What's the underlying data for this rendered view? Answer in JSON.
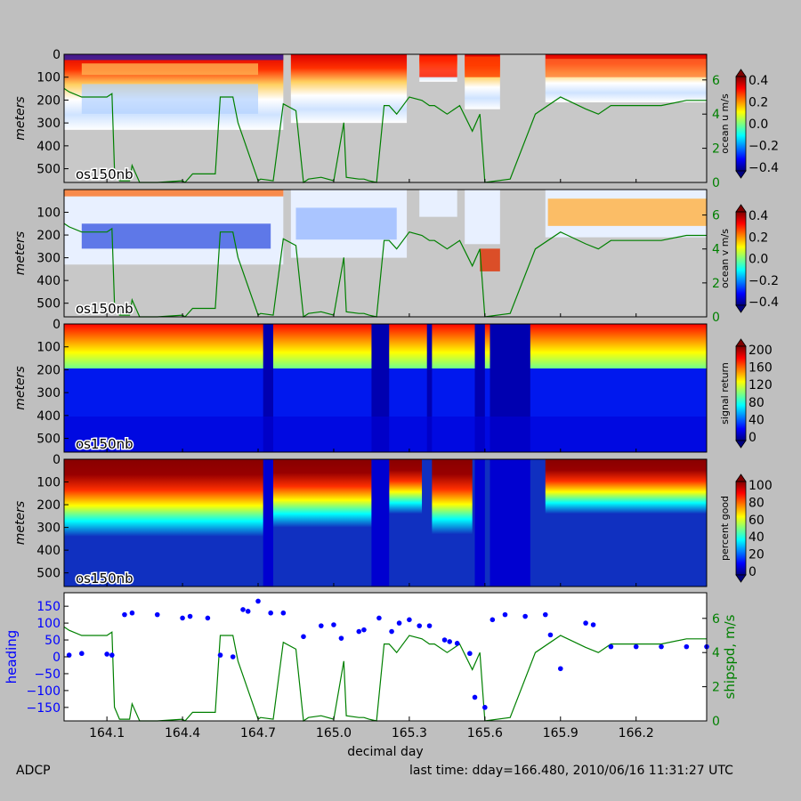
{
  "chart_data": [
    {
      "type": "heatmap",
      "instrument_label": "os150nb",
      "ylabel": "meters",
      "yticks": [
        0,
        100,
        200,
        300,
        400,
        500
      ],
      "colorbar_label": "ocean u m/s",
      "colorbar_ticks": [
        "0.4",
        "0.2",
        "0.0",
        "−0.2",
        "−0.4"
      ],
      "colorbar_range": [
        -0.4,
        0.4
      ],
      "colormap": "jet",
      "right_axis_ticks": [
        0,
        2,
        4,
        6
      ],
      "right_axis_range": [
        0,
        7.5
      ],
      "right_axis_color": "#008000"
    },
    {
      "type": "heatmap",
      "instrument_label": "os150nb",
      "ylabel": "meters",
      "yticks": [
        100,
        200,
        300,
        400,
        500
      ],
      "colorbar_label": "ocean v m/s",
      "colorbar_ticks": [
        "0.4",
        "0.2",
        "0.0",
        "−0.2",
        "−0.4"
      ],
      "colorbar_range": [
        -0.4,
        0.4
      ],
      "colormap": "jet",
      "right_axis_ticks": [
        0,
        2,
        4,
        6
      ],
      "right_axis_range": [
        0,
        7.5
      ],
      "right_axis_color": "#008000"
    },
    {
      "type": "heatmap",
      "instrument_label": "os150nb",
      "ylabel": "meters",
      "yticks": [
        0,
        100,
        200,
        300,
        400,
        500
      ],
      "colorbar_label": "signal return",
      "colorbar_ticks": [
        "200",
        "160",
        "120",
        "80",
        "40",
        "0"
      ],
      "colorbar_range": [
        0,
        200
      ],
      "colormap": "jet"
    },
    {
      "type": "heatmap",
      "instrument_label": "os150nb",
      "ylabel": "meters",
      "yticks": [
        0,
        100,
        200,
        300,
        400,
        500
      ],
      "colorbar_label": "percent good",
      "colorbar_ticks": [
        "100",
        "80",
        "60",
        "40",
        "20",
        "0"
      ],
      "colorbar_range": [
        0,
        100
      ],
      "colormap": "jet"
    },
    {
      "type": "scatter",
      "ylabel": "heading",
      "ylabel_color": "#0000ff",
      "yticks": [
        "150",
        "100",
        "50",
        "0",
        "−50",
        "−100",
        "−150"
      ],
      "ylim": [
        -190,
        190
      ],
      "right_ylabel": "shipspd, m/s",
      "right_ylabel_color": "#008000",
      "right_yticks": [
        0,
        2,
        4,
        6
      ],
      "right_ylim": [
        0,
        7.5
      ],
      "xlabel": "decimal day",
      "xticks": [
        "164.1",
        "164.4",
        "164.7",
        "165.0",
        "165.3",
        "165.6",
        "165.9",
        "166.2"
      ],
      "xlim": [
        163.93,
        166.48
      ],
      "series": [
        {
          "color": "#0000ff",
          "marker": "circle",
          "x": [
            163.95,
            164.0,
            164.1,
            164.12,
            164.17,
            164.2,
            164.3,
            164.4,
            164.43,
            164.5,
            164.55,
            164.6,
            164.64,
            164.66,
            164.7,
            164.75,
            164.8,
            164.88,
            164.95,
            165.0,
            165.03,
            165.1,
            165.12,
            165.18,
            165.23,
            165.26,
            165.3,
            165.34,
            165.38,
            165.44,
            165.46,
            165.49,
            165.54,
            165.56,
            165.6,
            165.63,
            165.68,
            165.76,
            165.84,
            165.86,
            165.9,
            166.0,
            166.03,
            166.1,
            166.2,
            166.3,
            166.4,
            166.48
          ],
          "y": [
            5,
            10,
            8,
            5,
            125,
            130,
            125,
            115,
            120,
            115,
            5,
            0,
            140,
            135,
            165,
            130,
            130,
            60,
            92,
            95,
            55,
            75,
            80,
            115,
            75,
            100,
            110,
            92,
            92,
            50,
            45,
            40,
            10,
            -120,
            -150,
            110,
            125,
            120,
            125,
            65,
            -35,
            100,
            95,
            30,
            30,
            30,
            30,
            30
          ]
        },
        {
          "name": "shipspd",
          "color": "#008000",
          "axis": "right",
          "x": [
            163.93,
            163.95,
            164.0,
            164.1,
            164.12,
            164.13,
            164.15,
            164.19,
            164.2,
            164.23,
            164.3,
            164.4,
            164.41,
            164.44,
            164.47,
            164.5,
            164.51,
            164.53,
            164.55,
            164.6,
            164.62,
            164.7,
            164.71,
            164.76,
            164.8,
            164.85,
            164.88,
            164.9,
            164.95,
            165.0,
            165.04,
            165.05,
            165.1,
            165.12,
            165.14,
            165.17,
            165.2,
            165.22,
            165.25,
            165.3,
            165.35,
            165.38,
            165.4,
            165.45,
            165.5,
            165.55,
            165.58,
            165.6,
            165.7,
            165.8,
            165.9,
            166.0,
            166.05,
            166.1,
            166.2,
            166.3,
            166.4,
            166.48
          ],
          "y": [
            5.5,
            5.3,
            5.0,
            5.0,
            5.2,
            0.8,
            0.1,
            0.1,
            1.0,
            0.0,
            0.0,
            0.1,
            0.0,
            0.5,
            0.5,
            0.5,
            0.5,
            0.5,
            5.0,
            5.0,
            3.5,
            0.1,
            0.2,
            0.1,
            4.6,
            4.2,
            0.0,
            0.2,
            0.3,
            0.1,
            3.5,
            0.3,
            0.2,
            0.2,
            0.1,
            0.0,
            4.5,
            4.5,
            4.0,
            5.0,
            4.8,
            4.5,
            4.5,
            4.0,
            4.5,
            3.0,
            4.0,
            0.0,
            0.2,
            4.0,
            5.0,
            4.3,
            4.0,
            4.5,
            4.5,
            4.5,
            4.8,
            4.8
          ]
        }
      ]
    }
  ],
  "footer": {
    "left": "ADCP",
    "right": "last time: dday=166.480,  2010/06/16 11:31:27 UTC"
  }
}
